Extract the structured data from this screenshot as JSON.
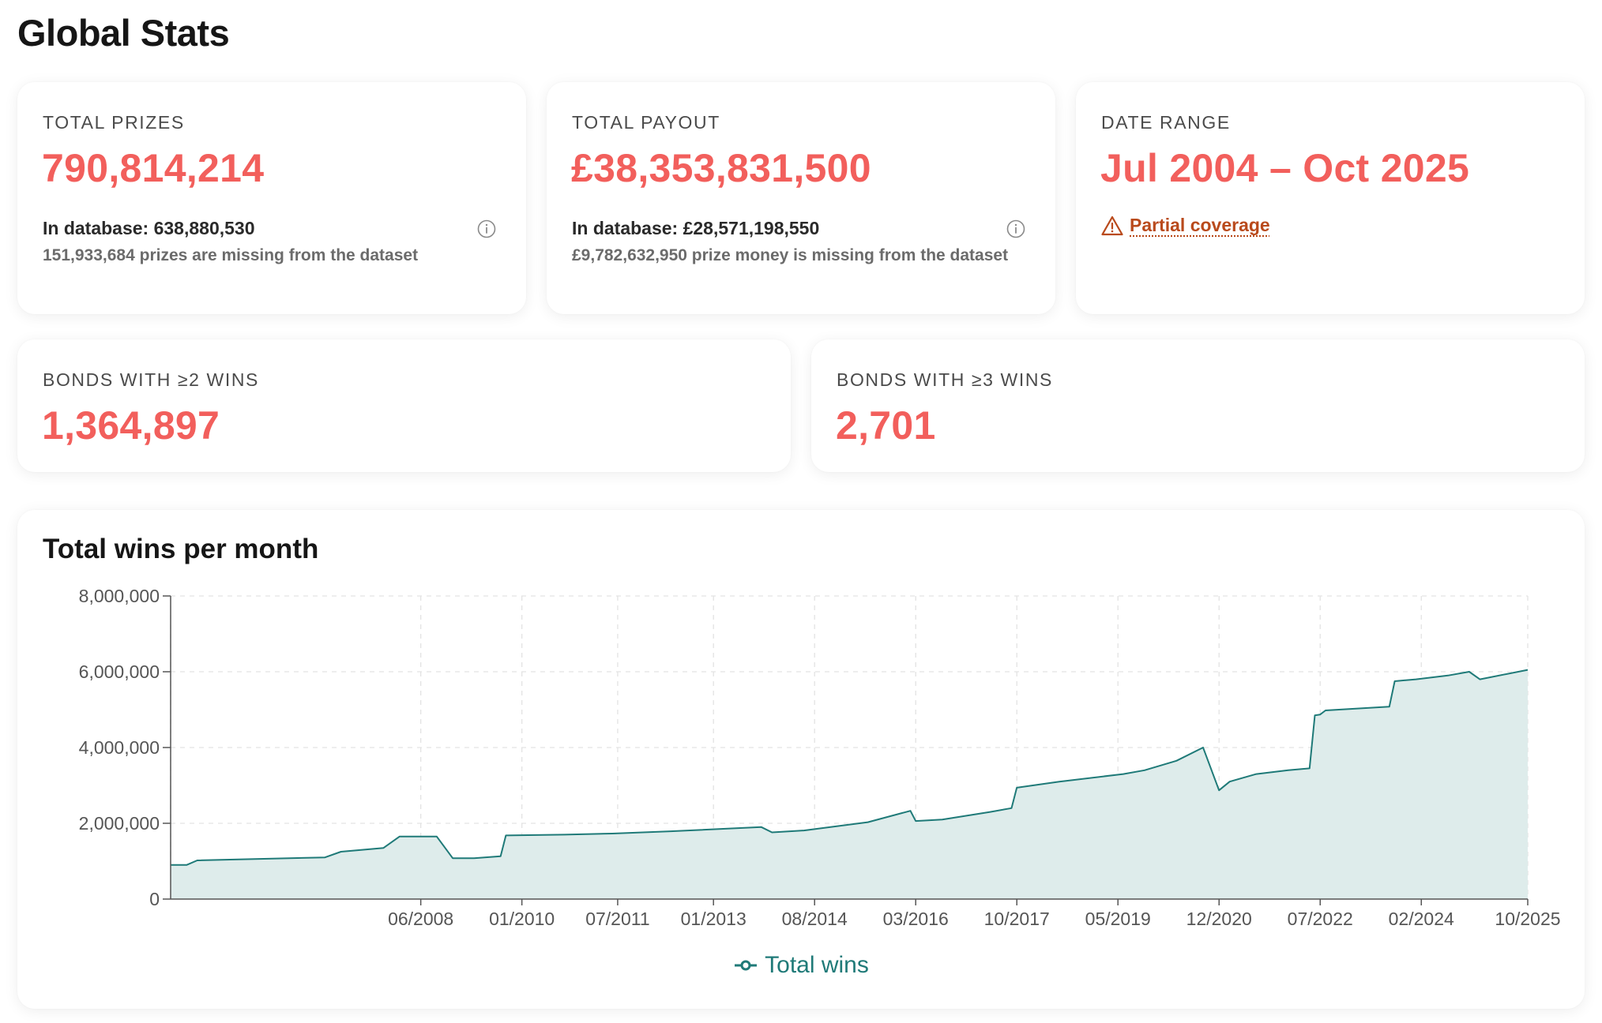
{
  "page": {
    "title": "Global Stats"
  },
  "cards": {
    "total_prizes": {
      "label": "TOTAL PRIZES",
      "value": "790,814,214",
      "in_database": "In database: 638,880,530",
      "missing": "151,933,684 prizes are missing from the dataset"
    },
    "total_payout": {
      "label": "TOTAL PAYOUT",
      "value": "£38,353,831,500",
      "in_database": "In database: £28,571,198,550",
      "missing": "£9,782,632,950 prize money is missing from the dataset"
    },
    "date_range": {
      "label": "DATE RANGE",
      "value": "Jul 2004 – Oct 2025",
      "warning": "Partial coverage"
    },
    "bonds_2_wins": {
      "label": "BONDS WITH ≥2 WINS",
      "value": "1,364,897"
    },
    "bonds_3_wins": {
      "label": "BONDS WITH ≥3 WINS",
      "value": "2,701"
    }
  },
  "colors": {
    "accent": "#f25f5c",
    "series_line": "#1f7a78",
    "series_fill": "#deeceb",
    "warning": "#b94a1c"
  },
  "icons": {
    "info": "info-circle-icon",
    "warning": "warning-triangle-icon",
    "legend": "line-marker-icon"
  },
  "chart_data": {
    "type": "area",
    "title": "Total wins per month",
    "xlabel": "",
    "ylabel": "",
    "ylim": [
      0,
      8000000
    ],
    "xlim": [
      "2004-07",
      "2025-10"
    ],
    "y_ticks": [
      "8,000,000",
      "6,000,000",
      "4,000,000",
      "2,000,000",
      "0"
    ],
    "y_tick_values": [
      8000000,
      6000000,
      4000000,
      2000000,
      0
    ],
    "x_ticks": [
      "06/2008",
      "01/2010",
      "07/2011",
      "01/2013",
      "08/2014",
      "03/2016",
      "10/2017",
      "05/2019",
      "12/2020",
      "07/2022",
      "02/2024",
      "10/2025"
    ],
    "x_tick_dates": [
      "2008-06",
      "2010-01",
      "2011-07",
      "2013-01",
      "2014-08",
      "2016-03",
      "2017-10",
      "2019-05",
      "2020-12",
      "2022-07",
      "2024-02",
      "2025-10"
    ],
    "grid": true,
    "legend": "bottom-center",
    "series": [
      {
        "name": "Total wins",
        "x": [
          "2004-07",
          "2004-10",
          "2004-12",
          "2006-12",
          "2007-03",
          "2007-11",
          "2008-02",
          "2008-06",
          "2008-09",
          "2008-12",
          "2009-04",
          "2009-09",
          "2009-10",
          "2010-09",
          "2011-06",
          "2012-05",
          "2013-10",
          "2013-12",
          "2014-06",
          "2015-06",
          "2016-02",
          "2016-03",
          "2016-08",
          "2017-05",
          "2017-09",
          "2017-10",
          "2018-06",
          "2019-06",
          "2019-10",
          "2020-04",
          "2020-09",
          "2020-12",
          "2021-02",
          "2021-07",
          "2022-01",
          "2022-05",
          "2022-06",
          "2022-07",
          "2022-08",
          "2023-08",
          "2023-09",
          "2024-01",
          "2024-07",
          "2024-11",
          "2025-01",
          "2025-10"
        ],
        "y": [
          900000,
          900000,
          1020000,
          1100000,
          1250000,
          1350000,
          1650000,
          1650000,
          1650000,
          1080000,
          1080000,
          1130000,
          1680000,
          1700000,
          1730000,
          1790000,
          1900000,
          1760000,
          1810000,
          2030000,
          2330000,
          2060000,
          2100000,
          2300000,
          2400000,
          2940000,
          3100000,
          3300000,
          3400000,
          3650000,
          4000000,
          2870000,
          3100000,
          3300000,
          3400000,
          3450000,
          4850000,
          4870000,
          4980000,
          5080000,
          5750000,
          5800000,
          5900000,
          6000000,
          5800000,
          6050000
        ]
      }
    ]
  }
}
